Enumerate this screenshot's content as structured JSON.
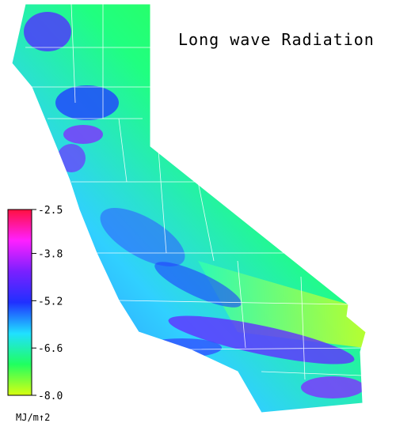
{
  "title": "Long wave Radiation",
  "legend": {
    "ticks": [
      -2.5,
      -3.8,
      -5.2,
      -6.6,
      {
        "value": -8,
        "label": "-8.0"
      }
    ],
    "unit": "MJ/m↑2",
    "colors": [
      "#ff1040",
      "#ff20ff",
      "#7a20ff",
      "#2030ff",
      "#20e0ff",
      "#20ff60",
      "#d8ff10"
    ]
  }
}
